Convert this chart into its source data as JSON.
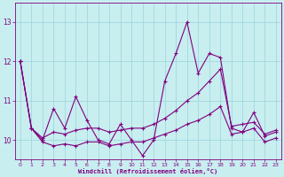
{
  "x": [
    0,
    1,
    2,
    3,
    4,
    5,
    6,
    7,
    8,
    9,
    10,
    11,
    12,
    13,
    14,
    15,
    16,
    17,
    18,
    19,
    20,
    21,
    22,
    23
  ],
  "line1": [
    12.0,
    10.3,
    10.0,
    10.8,
    10.3,
    11.1,
    10.5,
    10.0,
    9.9,
    10.4,
    10.0,
    9.6,
    10.0,
    11.5,
    12.2,
    13.0,
    11.7,
    12.2,
    12.1,
    10.3,
    10.2,
    10.7,
    10.1,
    10.2
  ],
  "line2": [
    12.0,
    10.3,
    10.05,
    10.2,
    10.15,
    10.25,
    10.3,
    10.3,
    10.2,
    10.25,
    10.3,
    10.3,
    10.4,
    10.55,
    10.75,
    11.0,
    11.2,
    11.5,
    11.8,
    10.35,
    10.4,
    10.45,
    10.15,
    10.25
  ],
  "line3": [
    12.0,
    10.3,
    9.95,
    9.85,
    9.9,
    9.85,
    9.95,
    9.95,
    9.85,
    9.9,
    9.95,
    9.95,
    10.05,
    10.15,
    10.25,
    10.4,
    10.5,
    10.65,
    10.85,
    10.15,
    10.2,
    10.3,
    9.95,
    10.05
  ],
  "xlabel": "Windchill (Refroidissement éolien,°C)",
  "yticks": [
    10,
    11,
    12,
    13
  ],
  "xticks": [
    0,
    1,
    2,
    3,
    4,
    5,
    6,
    7,
    8,
    9,
    10,
    11,
    12,
    13,
    14,
    15,
    16,
    17,
    18,
    19,
    20,
    21,
    22,
    23
  ],
  "ylim": [
    9.5,
    13.5
  ],
  "xlim": [
    -0.5,
    23.5
  ],
  "line_color": "#800080",
  "bg_color": "#c8eef0",
  "grid_color": "#a0d8e0"
}
